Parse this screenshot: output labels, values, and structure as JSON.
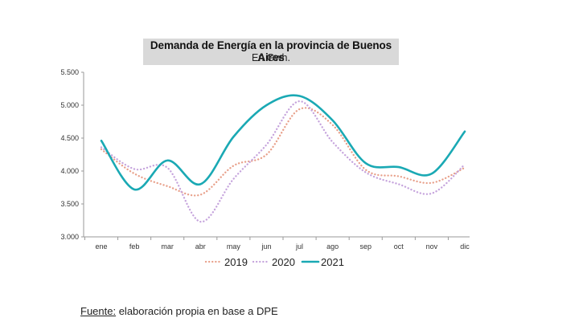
{
  "chart_data": {
    "type": "line",
    "title": "Demanda de Energía en la provincia de Buenos Aires",
    "subtitle": "En Gwh.",
    "categories": [
      "ene",
      "feb",
      "mar",
      "abr",
      "may",
      "jun",
      "jul",
      "ago",
      "sep",
      "oct",
      "nov",
      "dic"
    ],
    "ylim": [
      3000,
      5500
    ],
    "yticks": [
      3000,
      3500,
      4000,
      4500,
      5000,
      5500
    ],
    "ytick_labels": [
      "3.000",
      "3.500",
      "4.000",
      "4.500",
      "5.000",
      "5.500"
    ],
    "grid": false,
    "legend_position": "bottom",
    "series": [
      {
        "name": "2019",
        "color": "#e8a08a",
        "style": "dotted",
        "values": [
          4330,
          3960,
          3770,
          3640,
          4080,
          4250,
          4940,
          4700,
          4020,
          3920,
          3820,
          4050
        ]
      },
      {
        "name": "2020",
        "color": "#c5a3dc",
        "style": "dotted",
        "values": [
          4360,
          4030,
          4050,
          3230,
          3880,
          4400,
          5060,
          4440,
          3980,
          3800,
          3660,
          4100
        ]
      },
      {
        "name": "2021",
        "color": "#1aa9b4",
        "style": "solid",
        "values": [
          4460,
          3720,
          4160,
          3800,
          4520,
          5000,
          5140,
          4770,
          4120,
          4060,
          3960,
          4600
        ]
      }
    ]
  },
  "source": {
    "label": "Fuente:",
    "text": " elaboración propia en base a DPE"
  }
}
